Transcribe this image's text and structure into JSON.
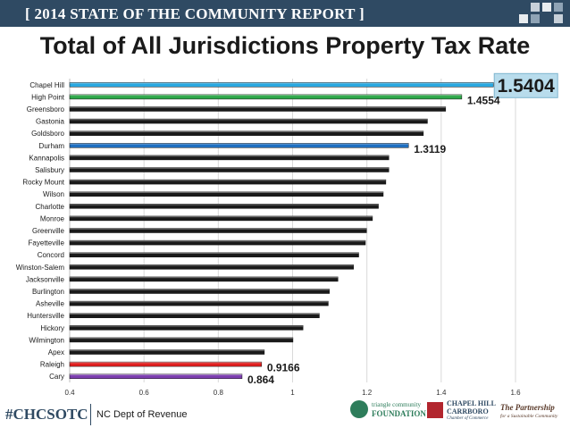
{
  "banner": {
    "title": "[ 2014 STATE OF THE COMMUNITY REPORT ]"
  },
  "page_title": "Total of All Jurisdictions Property Tax Rate",
  "footer": {
    "hashtag": "#CHCSOTC",
    "source": "NC Dept of Revenue"
  },
  "logos": {
    "triangle": {
      "line1": "triangle community",
      "line2": "FOUNDATION"
    },
    "chapel_hill": {
      "line1": "CHAPEL HILL",
      "line2": "CARRBORO",
      "line3": "Chamber of Commerce"
    },
    "partnership": {
      "line1": "The Partnership",
      "line2": "for a Sustainable Community"
    }
  },
  "colors": {
    "banner": "#2f4a63",
    "default_bar": "#1a1a1a",
    "chapel_hill": "#29a8e0",
    "high_point": "#2ea84a",
    "durham": "#1f6fc0",
    "raleigh": "#e02020",
    "cary": "#7d3fb0",
    "callout_bg": "#b8dcec"
  },
  "chart_data": {
    "type": "bar",
    "orientation": "horizontal",
    "title": "Total of All Jurisdictions Property Tax Rate",
    "categories": [
      "Chapel Hill",
      "High Point",
      "Greensboro",
      "Gastonia",
      "Goldsboro",
      "Durham",
      "Kannapolis",
      "Salisbury",
      "Rocky Mount",
      "Wilson",
      "Charlotte",
      "Monroe",
      "Greenville",
      "Fayetteville",
      "Concord",
      "Winston-Salem",
      "Jacksonville",
      "Burlington",
      "Asheville",
      "Huntersville",
      "Hickory",
      "Wilmington",
      "Apex",
      "Raleigh",
      "Cary"
    ],
    "values": [
      1.5404,
      1.4554,
      1.412,
      1.363,
      1.352,
      1.3119,
      1.259,
      1.259,
      1.251,
      1.244,
      1.231,
      1.215,
      1.199,
      1.196,
      1.178,
      1.164,
      1.122,
      1.099,
      1.096,
      1.072,
      1.028,
      1.001,
      0.924,
      0.9166,
      0.864
    ],
    "bar_colors": [
      "#29a8e0",
      "#2ea84a",
      "#1a1a1a",
      "#1a1a1a",
      "#1a1a1a",
      "#1f6fc0",
      "#1a1a1a",
      "#1a1a1a",
      "#1a1a1a",
      "#1a1a1a",
      "#1a1a1a",
      "#1a1a1a",
      "#1a1a1a",
      "#1a1a1a",
      "#1a1a1a",
      "#1a1a1a",
      "#1a1a1a",
      "#1a1a1a",
      "#1a1a1a",
      "#1a1a1a",
      "#1a1a1a",
      "#1a1a1a",
      "#1a1a1a",
      "#e02020",
      "#7d3fb0"
    ],
    "data_labels": [
      {
        "index": 0,
        "text": "1.5404",
        "highlight": true
      },
      {
        "index": 1,
        "text": "1.4554"
      },
      {
        "index": 5,
        "text": "1.3119"
      },
      {
        "index": 23,
        "text": "0.9166"
      },
      {
        "index": 24,
        "text": "0.864"
      }
    ],
    "xlim": [
      0.4,
      1.6
    ],
    "xticks": [
      0.4,
      0.6,
      0.8,
      1,
      1.2,
      1.4,
      1.6
    ],
    "xtick_labels": [
      "0.4",
      "0.6",
      "0.8",
      "1",
      "1.2",
      "1.4",
      "1.6"
    ],
    "grid": true,
    "legend": "none"
  }
}
